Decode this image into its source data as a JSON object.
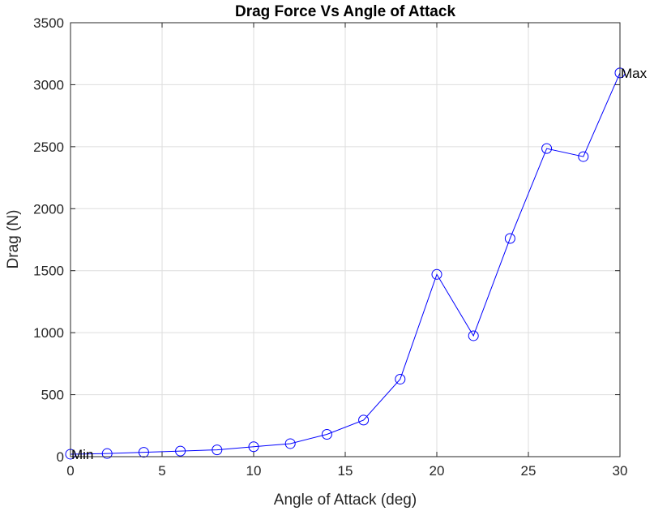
{
  "chart_data": {
    "type": "line",
    "title": "Drag Force Vs Angle of Attack",
    "xlabel": "Angle of Attack (deg)",
    "ylabel": "Drag (N)",
    "xlim": [
      0,
      30
    ],
    "ylim": [
      0,
      3500
    ],
    "xticks": [
      "0",
      "5",
      "10",
      "15",
      "20",
      "25",
      "30"
    ],
    "yticks": [
      "0",
      "500",
      "1000",
      "1500",
      "2000",
      "2500",
      "3000",
      "3500"
    ],
    "grid": true,
    "series": [
      {
        "color": "#0000ff",
        "marker": "circle",
        "x": [
          0,
          2,
          4,
          6,
          8,
          10,
          12,
          14,
          16,
          18,
          20,
          22,
          24,
          26,
          28,
          30
        ],
        "y": [
          20,
          25,
          35,
          45,
          55,
          80,
          105,
          180,
          295,
          625,
          1470,
          975,
          1760,
          2485,
          2420,
          3095
        ]
      }
    ],
    "annotations": [
      {
        "text": "Min",
        "x": 0,
        "y": 20
      },
      {
        "text": "Max",
        "x": 30,
        "y": 3095
      }
    ]
  }
}
